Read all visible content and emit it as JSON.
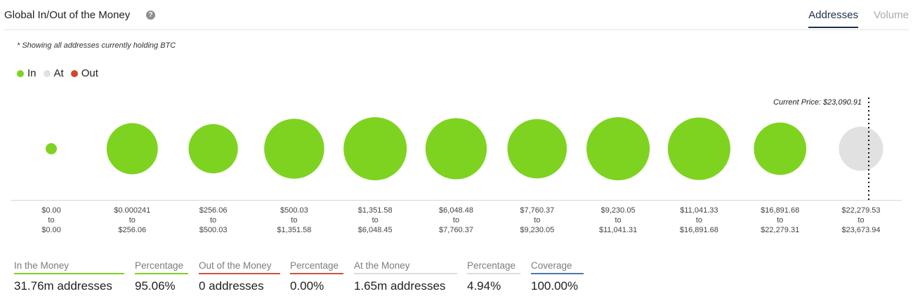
{
  "header": {
    "title": "Global In/Out of the Money",
    "help_icon": "?",
    "tabs": [
      "Addresses",
      "Volume"
    ],
    "active_tab": "Addresses"
  },
  "note": "* Showing all addresses currently holding BTC",
  "legend": [
    {
      "label": "In",
      "color": "#7ed321"
    },
    {
      "label": "At",
      "color": "#e1e1e1"
    },
    {
      "label": "Out",
      "color": "#d0472b"
    }
  ],
  "chart_data": {
    "type": "bubble",
    "current_price_label": "Current Price: $23,090.91",
    "buckets": [
      {
        "from": "$0.00",
        "to": "$0.00",
        "status": "in",
        "size": 0.12
      },
      {
        "from": "$0.000241",
        "to": "$256.06",
        "status": "in",
        "size": 0.81
      },
      {
        "from": "$256.06",
        "to": "$500.03",
        "status": "in",
        "size": 0.78
      },
      {
        "from": "$500.03",
        "to": "$1,351.58",
        "status": "in",
        "size": 0.95
      },
      {
        "from": "$1,351.58",
        "to": "$6,048.45",
        "status": "in",
        "size": 1.0
      },
      {
        "from": "$6,048.48",
        "to": "$7,760.37",
        "status": "in",
        "size": 0.97
      },
      {
        "from": "$7,760.37",
        "to": "$9,230.05",
        "status": "in",
        "size": 0.94
      },
      {
        "from": "$9,230.05",
        "to": "$11,041.31",
        "status": "in",
        "size": 1.0
      },
      {
        "from": "$11,041.33",
        "to": "$16,891.68",
        "status": "in",
        "size": 0.99
      },
      {
        "from": "$16,891.68",
        "to": "$22,279.31",
        "status": "in",
        "size": 0.83
      },
      {
        "from": "$22,279.53",
        "to": "$23,673.94",
        "status": "at",
        "size": 0.7
      }
    ],
    "to_word": "to"
  },
  "stats": [
    {
      "label": "In the Money",
      "value": "31.76m addresses",
      "color": "#7ed321"
    },
    {
      "label": "Percentage",
      "value": "95.06%",
      "color": "#7ed321"
    },
    {
      "label": "Out of the Money",
      "value": "0 addresses",
      "color": "#c9553e"
    },
    {
      "label": "Percentage",
      "value": "0.00%",
      "color": "#c9553e"
    },
    {
      "label": "At the Money",
      "value": "1.65m addresses",
      "color": "#dcdcdc"
    },
    {
      "label": "Percentage",
      "value": "4.94%",
      "color": "#dcdcdc"
    },
    {
      "label": "Coverage",
      "value": "100.00%",
      "color": "#4a7ab0"
    }
  ]
}
